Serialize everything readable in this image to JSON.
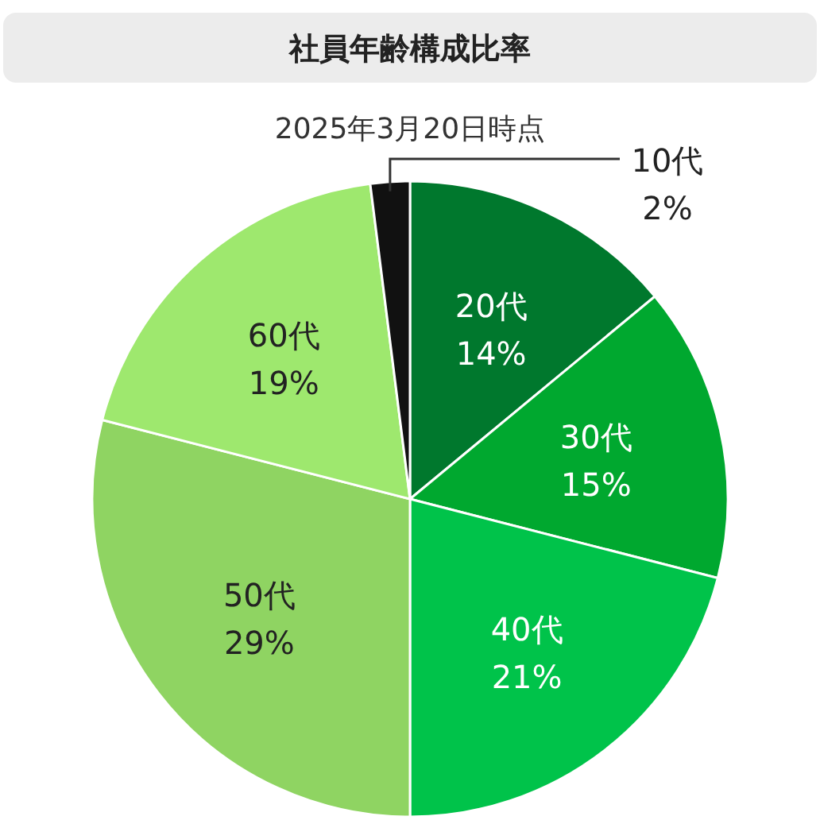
{
  "chart_data": {
    "type": "pie",
    "title": "社員年齢構成比率",
    "subtitle": "2025年3月20日時点",
    "categories": [
      "20代",
      "30代",
      "40代",
      "50代",
      "60代",
      "10代"
    ],
    "values": [
      14,
      15,
      21,
      29,
      19,
      2
    ],
    "value_labels": [
      "14%",
      "15%",
      "21%",
      "29%",
      "19%",
      "2%"
    ],
    "colors": [
      "#00782d",
      "#00a82f",
      "#00c34a",
      "#8fd462",
      "#9ee86e",
      "#111111"
    ]
  }
}
